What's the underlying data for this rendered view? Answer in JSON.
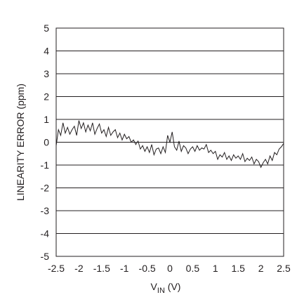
{
  "chart_data": {
    "type": "line",
    "title": "",
    "xlabel_main": "V",
    "xlabel_sub": "IN",
    "xlabel_unit": " (V)",
    "ylabel": "LINEARITY ERROR (ppm)",
    "xlim": [
      -2.5,
      2.5
    ],
    "ylim": [
      -5,
      5
    ],
    "x_ticks": [
      -2.5,
      -2,
      -1.5,
      -1,
      -0.5,
      0,
      0.5,
      1,
      1.5,
      2,
      2.5
    ],
    "x_tick_labels": [
      "-2.5",
      "-2",
      "-1.5",
      "-1",
      "-0.5",
      "0",
      "0.5",
      "1",
      "1.5",
      "2",
      "2.5"
    ],
    "y_ticks": [
      -5,
      -4,
      -3,
      -2,
      -1,
      0,
      1,
      2,
      3,
      4,
      5
    ],
    "y_tick_labels": [
      "-5",
      "-4",
      "-3",
      "-2",
      "-1",
      "0",
      "1",
      "2",
      "3",
      "4",
      "5"
    ],
    "grid": "horizontal",
    "legend": "none",
    "colors": {
      "line": "#231f20",
      "grid": "#231f20",
      "text": "#231f20"
    },
    "series": [
      {
        "x": [
          -2.5,
          -2.45,
          -2.4,
          -2.35,
          -2.3,
          -2.25,
          -2.2,
          -2.15,
          -2.1,
          -2.05,
          -2.0,
          -1.95,
          -1.9,
          -1.85,
          -1.8,
          -1.75,
          -1.7,
          -1.65,
          -1.6,
          -1.55,
          -1.5,
          -1.45,
          -1.4,
          -1.35,
          -1.3,
          -1.25,
          -1.2,
          -1.15,
          -1.1,
          -1.05,
          -1.0,
          -0.95,
          -0.9,
          -0.85,
          -0.8,
          -0.75,
          -0.7,
          -0.65,
          -0.6,
          -0.55,
          -0.5,
          -0.45,
          -0.4,
          -0.35,
          -0.3,
          -0.25,
          -0.2,
          -0.15,
          -0.1,
          -0.05,
          0.0,
          0.05,
          0.1,
          0.15,
          0.2,
          0.25,
          0.3,
          0.35,
          0.4,
          0.45,
          0.5,
          0.55,
          0.6,
          0.65,
          0.7,
          0.75,
          0.8,
          0.85,
          0.9,
          0.95,
          1.0,
          1.05,
          1.1,
          1.15,
          1.2,
          1.25,
          1.3,
          1.35,
          1.4,
          1.45,
          1.5,
          1.55,
          1.6,
          1.65,
          1.7,
          1.75,
          1.8,
          1.85,
          1.9,
          1.95,
          2.0,
          2.05,
          2.1,
          2.15,
          2.2,
          2.25,
          2.3,
          2.35,
          2.4,
          2.45,
          2.5
        ],
        "y": [
          -0.15,
          0.55,
          0.3,
          0.85,
          0.4,
          0.65,
          0.35,
          0.55,
          0.7,
          0.3,
          0.95,
          0.6,
          0.85,
          0.45,
          0.75,
          0.5,
          0.85,
          0.35,
          0.6,
          0.8,
          0.4,
          0.55,
          0.25,
          0.65,
          0.3,
          0.45,
          0.55,
          0.2,
          0.4,
          0.1,
          0.35,
          0.15,
          0.25,
          0.0,
          0.1,
          -0.1,
          0.05,
          -0.3,
          -0.15,
          -0.4,
          -0.2,
          -0.45,
          -0.1,
          -0.55,
          -0.3,
          -0.25,
          -0.5,
          -0.2,
          -0.45,
          0.3,
          0.0,
          0.45,
          -0.2,
          -0.35,
          0.05,
          -0.4,
          -0.15,
          -0.25,
          -0.5,
          -0.3,
          -0.2,
          -0.4,
          -0.15,
          -0.35,
          -0.25,
          -0.3,
          -0.1,
          -0.45,
          -0.35,
          -0.5,
          -0.4,
          -0.75,
          -0.55,
          -0.65,
          -0.45,
          -0.75,
          -0.6,
          -0.8,
          -0.55,
          -0.7,
          -0.6,
          -0.75,
          -0.5,
          -0.85,
          -0.7,
          -0.8,
          -0.65,
          -0.95,
          -0.75,
          -0.85,
          -1.1,
          -0.9,
          -0.75,
          -0.95,
          -0.6,
          -0.8,
          -0.45,
          -0.55,
          -0.3,
          -0.2,
          -0.05
        ]
      }
    ]
  }
}
